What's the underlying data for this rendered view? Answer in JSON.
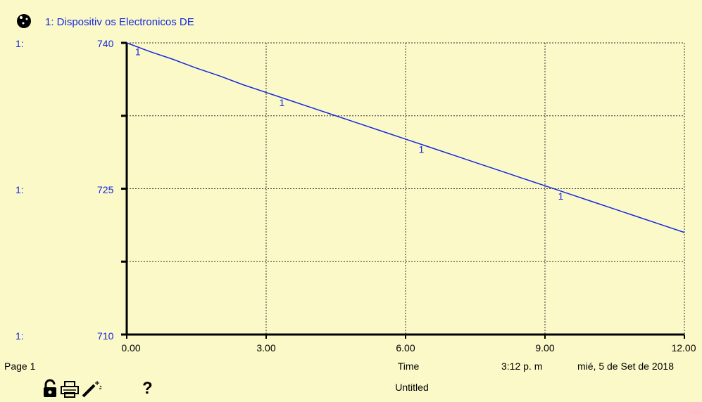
{
  "header": {
    "series_title": "1: Dispositiv os Electronicos DE"
  },
  "chart_data": {
    "type": "line",
    "series": [
      {
        "name": "1: Dispositiv os Electronicos DE",
        "marker": "1",
        "color": "#1428e0",
        "x": [
          0,
          0.5,
          1,
          1.5,
          2,
          2.5,
          3,
          3.5,
          4,
          4.5,
          5,
          5.5,
          6,
          6.5,
          7,
          7.5,
          8,
          8.5,
          9,
          9.5,
          10,
          10.5,
          11,
          11.5,
          12
        ],
        "y": [
          740,
          739.1,
          738.3,
          737.4,
          736.6,
          735.7,
          734.9,
          734.1,
          733.3,
          732.5,
          731.7,
          730.9,
          730.1,
          729.3,
          728.5,
          727.7,
          726.9,
          726.1,
          725.3,
          724.5,
          723.7,
          722.9,
          722.1,
          721.3,
          720.5
        ]
      }
    ],
    "marker_x": [
      0.15,
      3.25,
      6.25,
      9.25
    ],
    "xlim": [
      0,
      12
    ],
    "ylim": [
      710,
      740
    ],
    "x_ticks": [
      "0.00",
      "3.00",
      "6.00",
      "9.00",
      "12.00"
    ],
    "y_ticks": [
      "740",
      "725",
      "710"
    ],
    "y_tick_prefix": "1:",
    "xlabel": "Time",
    "grid": true
  },
  "footer": {
    "page_label": "Page 1",
    "time_label": "Time",
    "timestamp": "3:12 p. m",
    "date": "mié, 5 de Set de 2018",
    "document_title": "Untitled"
  },
  "toolbar": {
    "lock_icon": "lock-icon",
    "print_icon": "print-icon",
    "wand_icon": "magic-wand-icon",
    "help_glyph": "?"
  }
}
